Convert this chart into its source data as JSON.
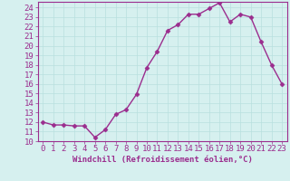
{
  "x": [
    0,
    1,
    2,
    3,
    4,
    5,
    6,
    7,
    8,
    9,
    10,
    11,
    12,
    13,
    14,
    15,
    16,
    17,
    18,
    19,
    20,
    21,
    22,
    23
  ],
  "y": [
    12.0,
    11.7,
    11.7,
    11.6,
    11.6,
    10.4,
    11.2,
    12.8,
    13.3,
    14.9,
    17.7,
    19.4,
    21.6,
    22.2,
    23.3,
    23.3,
    23.9,
    24.5,
    22.5,
    23.3,
    23.0,
    20.4,
    18.0,
    16.0
  ],
  "line_color": "#9b2d8e",
  "marker": "D",
  "markersize": 2.5,
  "bg_color": "#d6f0ef",
  "grid_color": "#b8e0de",
  "xlabel": "Windchill (Refroidissement éolien,°C)",
  "xlabel_color": "#9b2d8e",
  "tick_color": "#9b2d8e",
  "ylim": [
    10,
    24.6
  ],
  "xlim": [
    -0.5,
    23.5
  ],
  "yticks": [
    10,
    11,
    12,
    13,
    14,
    15,
    16,
    17,
    18,
    19,
    20,
    21,
    22,
    23,
    24
  ],
  "xticks": [
    0,
    1,
    2,
    3,
    4,
    5,
    6,
    7,
    8,
    9,
    10,
    11,
    12,
    13,
    14,
    15,
    16,
    17,
    18,
    19,
    20,
    21,
    22,
    23
  ],
  "linewidth": 1.0,
  "font_size": 6.5
}
